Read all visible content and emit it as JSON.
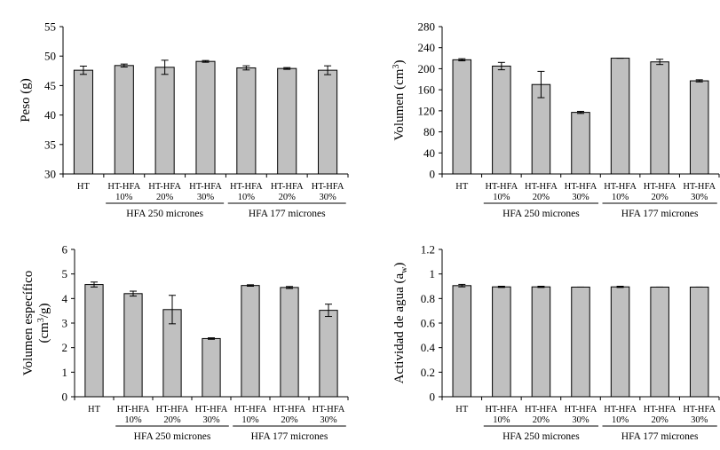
{
  "colors": {
    "bar_fill": "#c0c0c0",
    "bar_stroke": "#000000",
    "axis": "#000000"
  },
  "chart_data": [
    {
      "type": "bar",
      "ylabel": "Peso (g)",
      "ylim": [
        30,
        55
      ],
      "yticks": [
        "30",
        "35",
        "40",
        "45",
        "50",
        "55"
      ],
      "categories": [
        "HT",
        "HT-HFA 10%",
        "HT-HFA 20%",
        "HT-HFA 30%",
        "HT-HFA 10%",
        "HT-HFA 20%",
        "HT-HFA 30%"
      ],
      "values": [
        47.6,
        48.4,
        48.1,
        49.1,
        48.0,
        47.9,
        47.6
      ],
      "errors": [
        0.7,
        0.25,
        1.2,
        0.15,
        0.35,
        0.15,
        0.75
      ],
      "grid": false
    },
    {
      "type": "bar",
      "ylabel": "Volumen (cm3)",
      "ylim": [
        0,
        280
      ],
      "yticks": [
        "0",
        "40",
        "80",
        "120",
        "160",
        "200",
        "240",
        "280"
      ],
      "categories": [
        "HT",
        "HT-HFA 10%",
        "HT-HFA 20%",
        "HT-HFA 30%",
        "HT-HFA 10%",
        "HT-HFA 20%",
        "HT-HFA 30%"
      ],
      "values": [
        217,
        205,
        170,
        117,
        220,
        213,
        177
      ],
      "errors": [
        2,
        7,
        25,
        2,
        0,
        5,
        2
      ],
      "grid": false
    },
    {
      "type": "bar",
      "ylabel": "Volumen específico (cm3/g)",
      "ylim": [
        0,
        6
      ],
      "yticks": [
        "0",
        "1",
        "2",
        "3",
        "4",
        "5",
        "6"
      ],
      "categories": [
        "HT",
        "HT-HFA 10%",
        "HT-HFA 20%",
        "HT-HFA 30%",
        "HT-HFA 10%",
        "HT-HFA 20%",
        "HT-HFA 30%"
      ],
      "values": [
        4.57,
        4.2,
        3.55,
        2.37,
        4.53,
        4.45,
        3.52
      ],
      "errors": [
        0.1,
        0.1,
        0.58,
        0.03,
        0.03,
        0.04,
        0.25
      ],
      "grid": false
    },
    {
      "type": "bar",
      "ylabel": "Actividad de agua (aw)",
      "ylim": [
        0,
        1.2
      ],
      "yticks": [
        "0",
        "0.2",
        "0.4",
        "0.6",
        "0.8",
        "1",
        "1.2"
      ],
      "categories": [
        "HT",
        "HT-HFA 10%",
        "HT-HFA 20%",
        "HT-HFA 30%",
        "HT-HFA 10%",
        "HT-HFA 20%",
        "HT-HFA 30%"
      ],
      "values": [
        0.905,
        0.895,
        0.895,
        0.893,
        0.895,
        0.893,
        0.893
      ],
      "errors": [
        0.01,
        0.005,
        0.005,
        0.0,
        0.005,
        0.0,
        0.0
      ],
      "grid": false
    }
  ],
  "labels": {
    "ylabels": [
      {
        "main": "Peso (g)"
      },
      {
        "main": "Volumen (cm",
        "sup": "3",
        "tail": ")"
      },
      {
        "line1": "Volumen específico",
        "line2a": "(cm",
        "sup": "3",
        "line2b": "/g)"
      },
      {
        "main": "Actividad de agua (a",
        "sub": "w",
        "tail": ")"
      }
    ],
    "cat_line1": [
      "HT",
      "HT-HFA",
      "HT-HFA",
      "HT-HFA",
      "HT-HFA",
      "HT-HFA",
      "HT-HFA"
    ],
    "cat_line2": [
      "",
      "10%",
      "20%",
      "30%",
      "10%",
      "20%",
      "30%"
    ],
    "groups": [
      "HFA 250 micrones",
      "HFA 177 micrones"
    ]
  }
}
